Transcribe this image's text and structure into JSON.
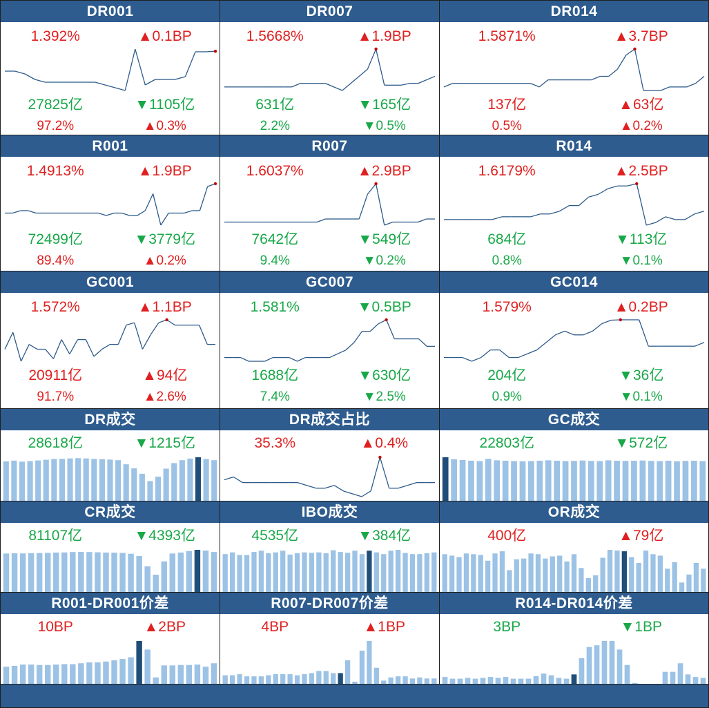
{
  "colors": {
    "header_bg": "#2e5c8f",
    "up": "#e02020",
    "down": "#18a848",
    "line": "#2d5a8a",
    "bar": "#9cc2e5",
    "bar_hl": "#1f4e79",
    "marker": "#c00000"
  },
  "cells": [
    {
      "title": "DR001",
      "rows": [
        {
          "l": "1.392%",
          "lc": "red",
          "r": "▲0.1BP",
          "rc": "red"
        },
        {
          "l": "27825亿",
          "lc": "green",
          "r": "▼1105亿",
          "rc": "green"
        },
        {
          "l": "97.2%",
          "lc": "red",
          "r": "▲0.3%",
          "rc": "red",
          "small": true
        }
      ]
    },
    {
      "title": "DR007",
      "rows": [
        {
          "l": "1.5668%",
          "lc": "red",
          "r": "▲1.9BP",
          "rc": "red"
        },
        {
          "l": "631亿",
          "lc": "green",
          "r": "▼165亿",
          "rc": "green"
        },
        {
          "l": "2.2%",
          "lc": "green",
          "r": "▼0.5%",
          "rc": "green",
          "small": true
        }
      ]
    },
    {
      "title": "DR014",
      "rows": [
        {
          "l": "1.5871%",
          "lc": "red",
          "r": "▲3.7BP",
          "rc": "red"
        },
        {
          "l": "137亿",
          "lc": "red",
          "r": "▲63亿",
          "rc": "red"
        },
        {
          "l": "0.5%",
          "lc": "red",
          "r": "▲0.2%",
          "rc": "red",
          "small": true
        }
      ]
    },
    {
      "title": "R001",
      "rows": [
        {
          "l": "1.4913%",
          "lc": "red",
          "r": "▲1.9BP",
          "rc": "red"
        },
        {
          "l": "72499亿",
          "lc": "green",
          "r": "▼3779亿",
          "rc": "green"
        },
        {
          "l": "89.4%",
          "lc": "red",
          "r": "▲0.2%",
          "rc": "red",
          "small": true
        }
      ]
    },
    {
      "title": "R007",
      "rows": [
        {
          "l": "1.6037%",
          "lc": "red",
          "r": "▲2.9BP",
          "rc": "red"
        },
        {
          "l": "7642亿",
          "lc": "green",
          "r": "▼549亿",
          "rc": "green"
        },
        {
          "l": "9.4%",
          "lc": "green",
          "r": "▼0.2%",
          "rc": "green",
          "small": true
        }
      ]
    },
    {
      "title": "R014",
      "rows": [
        {
          "l": "1.6179%",
          "lc": "red",
          "r": "▲2.5BP",
          "rc": "red"
        },
        {
          "l": "684亿",
          "lc": "green",
          "r": "▼113亿",
          "rc": "green"
        },
        {
          "l": "0.8%",
          "lc": "green",
          "r": "▼0.1%",
          "rc": "green",
          "small": true
        }
      ]
    },
    {
      "title": "GC001",
      "rows": [
        {
          "l": "1.572%",
          "lc": "red",
          "r": "▲1.1BP",
          "rc": "red"
        },
        {
          "l": "20911亿",
          "lc": "red",
          "r": "▲94亿",
          "rc": "red"
        },
        {
          "l": "91.7%",
          "lc": "red",
          "r": "▲2.6%",
          "rc": "red",
          "small": true
        }
      ]
    },
    {
      "title": "GC007",
      "rows": [
        {
          "l": "1.581%",
          "lc": "green",
          "r": "▼0.5BP",
          "rc": "green"
        },
        {
          "l": "1688亿",
          "lc": "green",
          "r": "▼630亿",
          "rc": "green"
        },
        {
          "l": "7.4%",
          "lc": "green",
          "r": "▼2.5%",
          "rc": "green",
          "small": true
        }
      ]
    },
    {
      "title": "GC014",
      "rows": [
        {
          "l": "1.579%",
          "lc": "red",
          "r": "▲0.2BP",
          "rc": "red"
        },
        {
          "l": "204亿",
          "lc": "green",
          "r": "▼36亿",
          "rc": "green"
        },
        {
          "l": "0.9%",
          "lc": "green",
          "r": "▼0.1%",
          "rc": "green",
          "small": true
        }
      ]
    },
    {
      "title": "DR成交",
      "rows": [
        {
          "l": "28618亿",
          "lc": "green",
          "r": "▼1215亿",
          "rc": "green"
        }
      ]
    },
    {
      "title": "DR成交占比",
      "rows": [
        {
          "l": "35.3%",
          "lc": "red",
          "r": "▲0.4%",
          "rc": "red"
        }
      ]
    },
    {
      "title": "GC成交",
      "rows": [
        {
          "l": "22803亿",
          "lc": "green",
          "r": "▼572亿",
          "rc": "green"
        }
      ]
    },
    {
      "title": "CR成交",
      "rows": [
        {
          "l": "81107亿",
          "lc": "green",
          "r": "▼4393亿",
          "rc": "green"
        }
      ]
    },
    {
      "title": "IBO成交",
      "rows": [
        {
          "l": "4535亿",
          "lc": "green",
          "r": "▼384亿",
          "rc": "green"
        }
      ]
    },
    {
      "title": "OR成交",
      "rows": [
        {
          "l": "400亿",
          "lc": "red",
          "r": "▲79亿",
          "rc": "red"
        }
      ]
    },
    {
      "title": "R001-DR001价差",
      "rows": [
        {
          "l": "10BP",
          "lc": "red",
          "r": "▲2BP",
          "rc": "red"
        }
      ]
    },
    {
      "title": "R007-DR007价差",
      "rows": [
        {
          "l": "4BP",
          "lc": "red",
          "r": "▲1BP",
          "rc": "red"
        }
      ]
    },
    {
      "title": "R014-DR014价差",
      "rows": [
        {
          "l": "3BP",
          "lc": "green",
          "r": "▼1BP",
          "rc": "green"
        }
      ]
    }
  ],
  "chart_data": [
    {
      "type": "line",
      "cell": "DR001",
      "marker": "last",
      "values": [
        1.32,
        1.32,
        1.31,
        1.29,
        1.28,
        1.28,
        1.28,
        1.28,
        1.28,
        1.28,
        1.27,
        1.26,
        1.25,
        1.4,
        1.27,
        1.29,
        1.29,
        1.29,
        1.3,
        1.39,
        1.39,
        1.392
      ]
    },
    {
      "type": "line",
      "cell": "DR007",
      "marker": "max",
      "values": [
        1.46,
        1.46,
        1.46,
        1.46,
        1.46,
        1.46,
        1.46,
        1.46,
        1.46,
        1.47,
        1.47,
        1.47,
        1.47,
        1.46,
        1.45,
        1.47,
        1.49,
        1.51,
        1.5668,
        1.465,
        1.465,
        1.465,
        1.47,
        1.47,
        1.48,
        1.49
      ]
    },
    {
      "type": "line",
      "cell": "DR014",
      "marker": "max",
      "values": [
        1.48,
        1.49,
        1.49,
        1.49,
        1.49,
        1.49,
        1.49,
        1.49,
        1.49,
        1.49,
        1.49,
        1.48,
        1.5,
        1.5,
        1.5,
        1.5,
        1.5,
        1.5,
        1.51,
        1.51,
        1.53,
        1.57,
        1.5871,
        1.47,
        1.47,
        1.47,
        1.48,
        1.48,
        1.48,
        1.49,
        1.51
      ]
    },
    {
      "type": "line",
      "cell": "R001",
      "marker": "last",
      "values": [
        1.37,
        1.37,
        1.38,
        1.38,
        1.37,
        1.37,
        1.37,
        1.37,
        1.37,
        1.37,
        1.37,
        1.37,
        1.37,
        1.36,
        1.37,
        1.37,
        1.36,
        1.36,
        1.38,
        1.45,
        1.32,
        1.37,
        1.37,
        1.37,
        1.38,
        1.38,
        1.48,
        1.4913
      ]
    },
    {
      "type": "line",
      "cell": "R007",
      "marker": "max",
      "values": [
        1.48,
        1.48,
        1.48,
        1.48,
        1.48,
        1.48,
        1.48,
        1.48,
        1.48,
        1.48,
        1.48,
        1.48,
        1.49,
        1.49,
        1.49,
        1.49,
        1.49,
        1.57,
        1.6037,
        1.47,
        1.48,
        1.48,
        1.48,
        1.48,
        1.49,
        1.49
      ]
    },
    {
      "type": "line",
      "cell": "R014",
      "marker": "max",
      "values": [
        1.49,
        1.49,
        1.49,
        1.49,
        1.49,
        1.49,
        1.5,
        1.5,
        1.5,
        1.5,
        1.51,
        1.51,
        1.52,
        1.54,
        1.54,
        1.57,
        1.58,
        1.6,
        1.61,
        1.61,
        1.6179,
        1.47,
        1.48,
        1.5,
        1.49,
        1.49,
        1.51,
        1.52
      ]
    },
    {
      "type": "line",
      "cell": "GC001",
      "marker": "max",
      "values": [
        1.45,
        1.52,
        1.4,
        1.47,
        1.45,
        1.45,
        1.41,
        1.49,
        1.43,
        1.49,
        1.49,
        1.42,
        1.45,
        1.47,
        1.47,
        1.55,
        1.56,
        1.45,
        1.51,
        1.56,
        1.572,
        1.55,
        1.55,
        1.55,
        1.55,
        1.47,
        1.47
      ]
    },
    {
      "type": "line",
      "cell": "GC007",
      "marker": "max",
      "values": [
        1.48,
        1.48,
        1.48,
        1.47,
        1.47,
        1.47,
        1.48,
        1.48,
        1.48,
        1.47,
        1.48,
        1.48,
        1.48,
        1.48,
        1.49,
        1.5,
        1.52,
        1.55,
        1.55,
        1.57,
        1.581,
        1.53,
        1.53,
        1.53,
        1.53,
        1.51,
        1.51
      ]
    },
    {
      "type": "line",
      "cell": "GC014",
      "marker": "max",
      "values": [
        1.48,
        1.48,
        1.48,
        1.47,
        1.48,
        1.5,
        1.5,
        1.48,
        1.48,
        1.49,
        1.5,
        1.52,
        1.54,
        1.55,
        1.54,
        1.54,
        1.55,
        1.57,
        1.579,
        1.58,
        1.58,
        1.58,
        1.51,
        1.51,
        1.51,
        1.51,
        1.51,
        1.51,
        1.52
      ]
    },
    {
      "type": "bar",
      "cell": "DR成交",
      "highlight_index": 24,
      "values": [
        27000,
        27500,
        26800,
        27200,
        27600,
        28100,
        28600,
        28700,
        29000,
        29200,
        29000,
        28700,
        28500,
        28200,
        27800,
        25000,
        22200,
        18500,
        13500,
        16500,
        22000,
        25800,
        27800,
        28900,
        29800,
        28618,
        27800
      ]
    },
    {
      "type": "line",
      "cell": "DR成交占比",
      "marker": "max",
      "values": [
        34.5,
        34.6,
        34.4,
        34.4,
        34.4,
        34.4,
        34.4,
        34.4,
        34.4,
        34.3,
        34.2,
        34.2,
        34.3,
        34.1,
        34.0,
        33.9,
        34.1,
        35.3,
        34.2,
        34.2,
        34.3,
        34.4,
        34.4,
        34.4
      ]
    },
    {
      "type": "bar",
      "cell": "GC成交",
      "highlight_index": 0,
      "values": [
        22803,
        21800,
        21400,
        21000,
        20800,
        22000,
        21200,
        21000,
        20800,
        20700,
        20800,
        21000,
        21200,
        21000,
        20800,
        20900,
        21100,
        20900,
        20800,
        21200,
        21000,
        20900,
        21000,
        21100,
        20900,
        20800,
        21000,
        20700,
        20900,
        21000,
        20800
      ]
    },
    {
      "type": "bar",
      "cell": "CR成交",
      "highlight_index": 23,
      "values": [
        78000,
        78500,
        78200,
        78500,
        79000,
        79300,
        80000,
        80200,
        81000,
        81300,
        81000,
        80500,
        80000,
        79800,
        79200,
        77500,
        73000,
        52000,
        35000,
        62000,
        78000,
        80000,
        83000,
        85500,
        84000,
        81107
      ]
    },
    {
      "type": "bar",
      "cell": "IBO成交",
      "highlight_index": 20,
      "values": [
        4400,
        4600,
        4300,
        4300,
        4650,
        4800,
        4500,
        4600,
        4800,
        4350,
        4500,
        4600,
        4550,
        4600,
        4500,
        4850,
        4650,
        4550,
        4800,
        4400,
        4800,
        4600,
        4400,
        4800,
        4900,
        4535,
        4400,
        4400,
        4500,
        4600
      ]
    },
    {
      "type": "bar",
      "cell": "OR成交",
      "highlight_index": 25,
      "values": [
        520,
        500,
        480,
        530,
        520,
        510,
        430,
        530,
        560,
        300,
        450,
        460,
        530,
        520,
        460,
        490,
        500,
        420,
        520,
        330,
        190,
        230,
        470,
        580,
        570,
        560,
        480,
        400,
        570,
        520,
        500,
        320,
        410,
        130,
        240,
        400,
        320
      ]
    },
    {
      "type": "bar",
      "cell": "R001-DR001价差",
      "highlight_index": 16,
      "values": [
        4,
        4.2,
        4.5,
        4.5,
        4.4,
        4.4,
        4.5,
        4.6,
        4.6,
        4.8,
        5,
        5,
        5.2,
        5.5,
        5.8,
        6.2,
        10,
        8,
        1.5,
        4.3,
        4.3,
        4.4,
        4.4,
        4.5,
        4,
        4.8
      ]
    },
    {
      "type": "bar",
      "cell": "R007-DR007价差",
      "highlight_index": 16,
      "values": [
        0.8,
        0.8,
        0.9,
        0.7,
        0.7,
        0.7,
        0.8,
        0.9,
        0.9,
        0.9,
        0.8,
        0.9,
        1.0,
        1.2,
        1.2,
        1.0,
        1.0,
        2.2,
        0.2,
        3.1,
        4,
        1.5,
        0.3,
        0.6,
        0.7,
        0.7,
        0.5,
        0.6,
        0.5,
        0.5
      ]
    },
    {
      "type": "bar",
      "cell": "R014-DR014价差",
      "highlight_index": 17,
      "values": [
        0.8,
        0.6,
        0.6,
        0.7,
        0.6,
        0.7,
        0.8,
        0.7,
        0.8,
        0.6,
        0.6,
        0.6,
        0.9,
        1.2,
        1.0,
        0.7,
        0.6,
        1.1,
        3,
        4.3,
        4.5,
        5,
        5,
        4,
        2.2,
        0.1,
        0,
        0,
        0,
        1.4,
        1.4,
        2.4,
        1.1,
        0.8,
        0.7
      ]
    }
  ]
}
